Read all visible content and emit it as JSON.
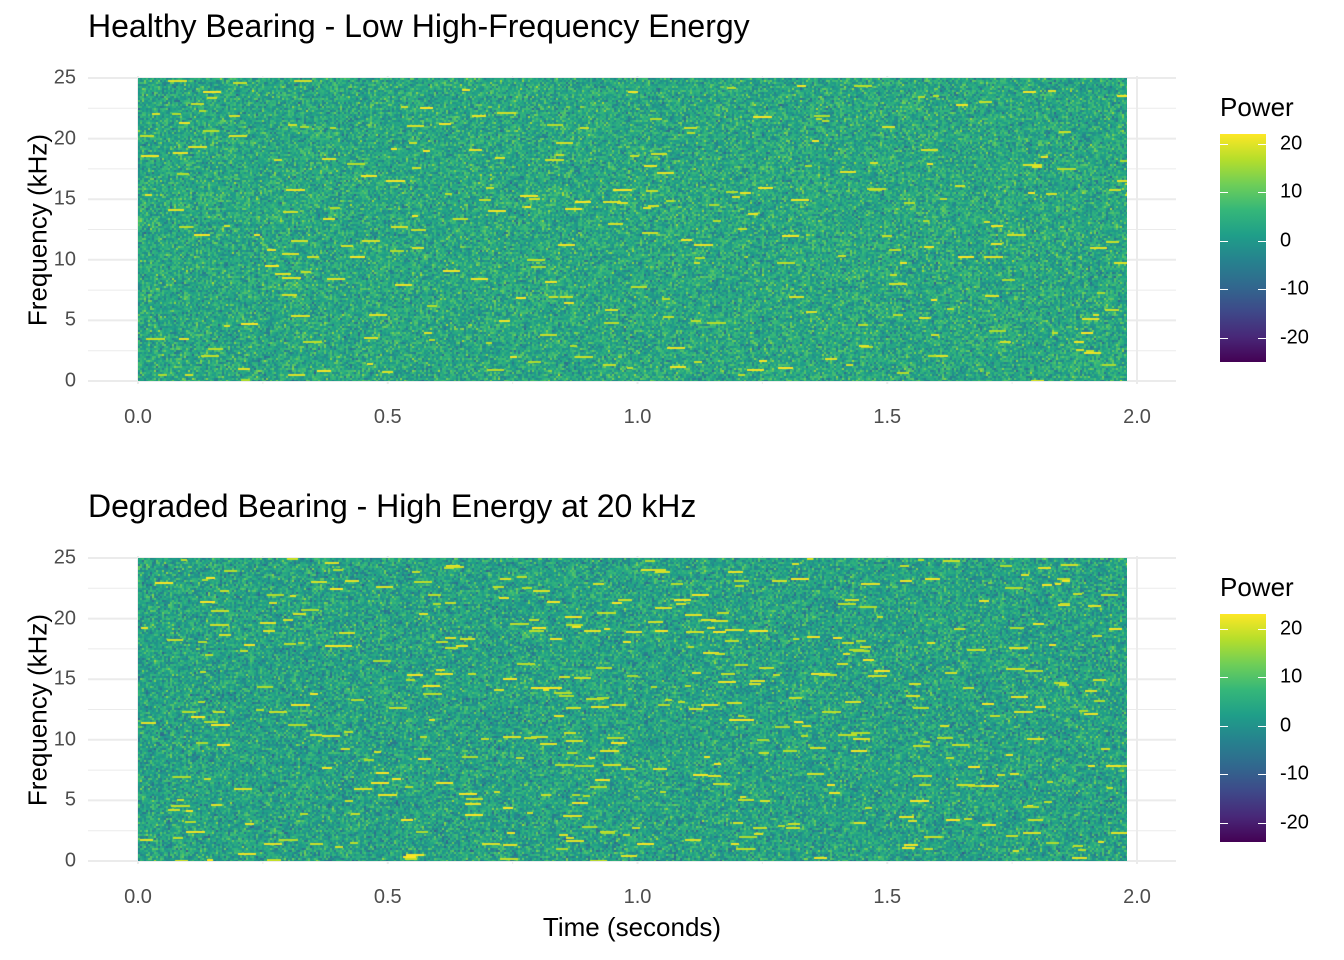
{
  "chart_data": [
    {
      "type": "heatmap",
      "title": "Healthy Bearing - Low High-Frequency Energy",
      "xlabel": "",
      "ylabel": "Frequency (kHz)",
      "xlim": [
        0.0,
        1.98
      ],
      "ylim": [
        0,
        25
      ],
      "x_ticks": [
        "0.0",
        "0.5",
        "1.0",
        "1.5",
        "2.0"
      ],
      "x_tick_values": [
        0.0,
        0.5,
        1.0,
        1.5,
        2.0
      ],
      "y_ticks": [
        "0",
        "5",
        "10",
        "15",
        "20",
        "25"
      ],
      "y_tick_values": [
        0,
        5,
        10,
        15,
        20,
        25
      ],
      "grid": true,
      "legend": {
        "title": "Power",
        "placement": "right",
        "colormap": "viridis",
        "range": [
          -25,
          22
        ],
        "ticks": [
          "20",
          "10",
          "0",
          "-10",
          "-20"
        ],
        "tick_values": [
          20,
          10,
          0,
          -10,
          -20
        ]
      },
      "approx_values": {
        "mean_power": 3,
        "typical_range": [
          -12,
          18
        ],
        "max_power": 22,
        "min_power": -25
      }
    },
    {
      "type": "heatmap",
      "title": "Degraded Bearing - High Energy at 20 kHz",
      "xlabel": "Time (seconds)",
      "ylabel": "Frequency (kHz)",
      "xlim": [
        0.0,
        1.98
      ],
      "ylim": [
        0,
        25
      ],
      "x_ticks": [
        "0.0",
        "0.5",
        "1.0",
        "1.5",
        "2.0"
      ],
      "x_tick_values": [
        0.0,
        0.5,
        1.0,
        1.5,
        2.0
      ],
      "y_ticks": [
        "0",
        "5",
        "10",
        "15",
        "20",
        "25"
      ],
      "y_tick_values": [
        0,
        5,
        10,
        15,
        20,
        25
      ],
      "grid": true,
      "legend": {
        "title": "Power",
        "placement": "right",
        "colormap": "viridis",
        "range": [
          -24,
          23
        ],
        "ticks": [
          "20",
          "10",
          "0",
          "-10",
          "-20"
        ],
        "tick_values": [
          20,
          10,
          0,
          -10,
          -20
        ]
      },
      "approx_values": {
        "mean_power": 3,
        "typical_range": [
          -12,
          19
        ],
        "max_power": 23,
        "min_power": -24
      }
    }
  ],
  "colors": {
    "viridis": [
      "#440154",
      "#482878",
      "#3e4989",
      "#31688e",
      "#26828e",
      "#1f9e89",
      "#35b779",
      "#6ece58",
      "#b5de2b",
      "#fde725"
    ],
    "grid": "#ebebeb",
    "tick_text": "#4d4d4d"
  }
}
